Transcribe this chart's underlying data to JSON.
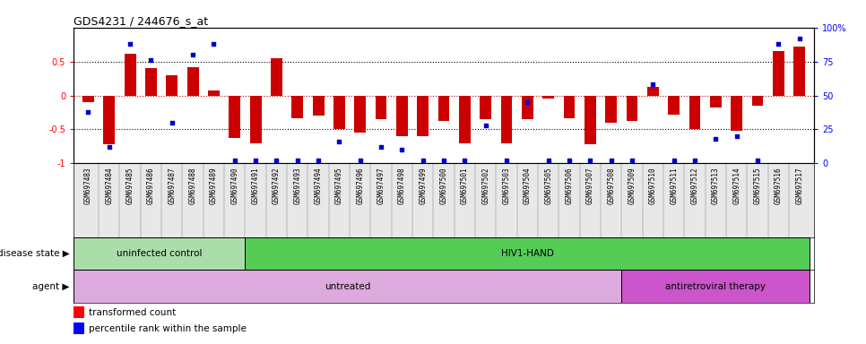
{
  "title": "GDS4231 / 244676_s_at",
  "samples": [
    "GSM697483",
    "GSM697484",
    "GSM697485",
    "GSM697486",
    "GSM697487",
    "GSM697488",
    "GSM697489",
    "GSM697490",
    "GSM697491",
    "GSM697492",
    "GSM697493",
    "GSM697494",
    "GSM697495",
    "GSM697496",
    "GSM697497",
    "GSM697498",
    "GSM697499",
    "GSM697500",
    "GSM697501",
    "GSM697502",
    "GSM697503",
    "GSM697504",
    "GSM697505",
    "GSM697506",
    "GSM697507",
    "GSM697508",
    "GSM697509",
    "GSM697510",
    "GSM697511",
    "GSM697512",
    "GSM697513",
    "GSM697514",
    "GSM697515",
    "GSM697516",
    "GSM697517"
  ],
  "bar_values": [
    -0.1,
    -0.72,
    0.62,
    0.4,
    0.3,
    0.42,
    0.07,
    -0.62,
    -0.7,
    0.55,
    -0.33,
    -0.3,
    -0.5,
    -0.55,
    -0.35,
    -0.6,
    -0.6,
    -0.38,
    -0.7,
    -0.35,
    -0.7,
    -0.35,
    -0.05,
    -0.33,
    -0.72,
    -0.4,
    -0.38,
    0.12,
    -0.28,
    -0.5,
    -0.18,
    -0.52,
    -0.15,
    0.65,
    0.72
  ],
  "percentile_values": [
    38,
    12,
    88,
    76,
    30,
    80,
    88,
    2,
    2,
    2,
    2,
    2,
    16,
    2,
    12,
    10,
    2,
    2,
    2,
    28,
    2,
    45,
    2,
    2,
    2,
    2,
    2,
    58,
    2,
    2,
    18,
    20,
    2,
    88,
    92
  ],
  "disease_state_groups": [
    {
      "label": "uninfected control",
      "start": 0,
      "end": 8,
      "color": "#aaddaa"
    },
    {
      "label": "HIV1-HAND",
      "start": 8,
      "end": 35,
      "color": "#55cc55"
    }
  ],
  "agent_groups": [
    {
      "label": "untreated",
      "start": 0,
      "end": 26,
      "color": "#ddaadd"
    },
    {
      "label": "antiretroviral therapy",
      "start": 26,
      "end": 35,
      "color": "#cc55cc"
    }
  ],
  "bar_color": "#CC0000",
  "dot_color": "#0000CC",
  "ylim_left": [
    -1.0,
    1.0
  ],
  "ylim_right": [
    0,
    100
  ],
  "legend_transformed": "transformed count",
  "legend_percentile": "percentile rank within the sample",
  "disease_state_label": "disease state",
  "agent_label": "agent",
  "hline_color_zero": "#CC0000",
  "hline_color_half": "#000000"
}
